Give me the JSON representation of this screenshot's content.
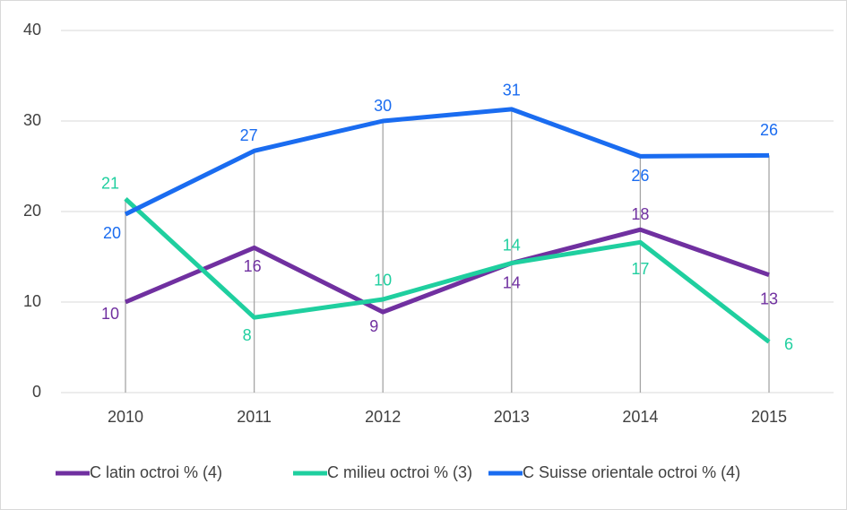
{
  "chart_data": {
    "type": "line",
    "categories": [
      "2010",
      "2011",
      "2012",
      "2013",
      "2014",
      "2015"
    ],
    "series": [
      {
        "name": "C latin octroi % (4)",
        "color": "#7030a0",
        "values": [
          10,
          16,
          8.9,
          14.3,
          18,
          13
        ],
        "value_labels": [
          "10",
          "16",
          "9",
          "14",
          "18",
          "13"
        ]
      },
      {
        "name": "C milieu octroi % (3)",
        "color": "#1fcf9f",
        "values": [
          21.4,
          8.3,
          10.3,
          14.3,
          16.6,
          5.6
        ],
        "value_labels": [
          "21",
          "8",
          "10",
          "14",
          "17",
          "6"
        ]
      },
      {
        "name": "C Suisse orientale octroi % (4)",
        "color": "#1a6cf0",
        "values": [
          19.7,
          26.7,
          30,
          31.3,
          26.1,
          26.2
        ],
        "value_labels": [
          "20",
          "27",
          "30",
          "31",
          "26",
          "26"
        ]
      }
    ],
    "ylim": [
      0,
      40
    ],
    "yticks": [
      0,
      10,
      20,
      30,
      40
    ],
    "grid": true,
    "legend": "bottom"
  }
}
